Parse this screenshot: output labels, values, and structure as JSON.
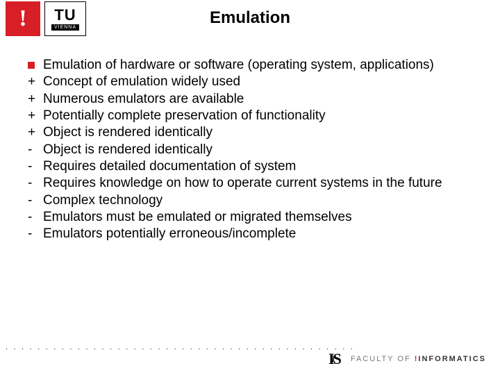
{
  "title": "Emulation",
  "logo_tu": {
    "top": "TU",
    "bottom": "VIENNA"
  },
  "items": [
    {
      "bullet": "square",
      "text": "Emulation of  hardware or software (operating system, applications)"
    },
    {
      "bullet": "+",
      "text": "Concept of emulation widely used"
    },
    {
      "bullet": "+",
      "text": "Numerous emulators are available"
    },
    {
      "bullet": "+",
      "text": "Potentially complete preservation of functionality"
    },
    {
      "bullet": "+",
      "text": "Object is rendered identically"
    },
    {
      "bullet": "-",
      "text": "Object is rendered identically"
    },
    {
      "bullet": "-",
      "text": "Requires detailed documentation of system"
    },
    {
      "bullet": "-",
      "text": "Requires knowledge on how to operate current systems in the future"
    },
    {
      "bullet": "-",
      "text": "Complex technology"
    },
    {
      "bullet": "-",
      "text": "Emulators must be emulated or migrated themselves"
    },
    {
      "bullet": "-",
      "text": "Emulators potentially erroneous/incomplete"
    }
  ],
  "footer": {
    "ifs": {
      "i": "I",
      "f": "f",
      "s": "S"
    },
    "faculty_pre": "FACULTY  OF ",
    "faculty_bang": "!",
    "faculty_inf": "INFORMATICS"
  },
  "colors": {
    "accent": "#d81e26",
    "text": "#000000",
    "muted": "#777777"
  }
}
